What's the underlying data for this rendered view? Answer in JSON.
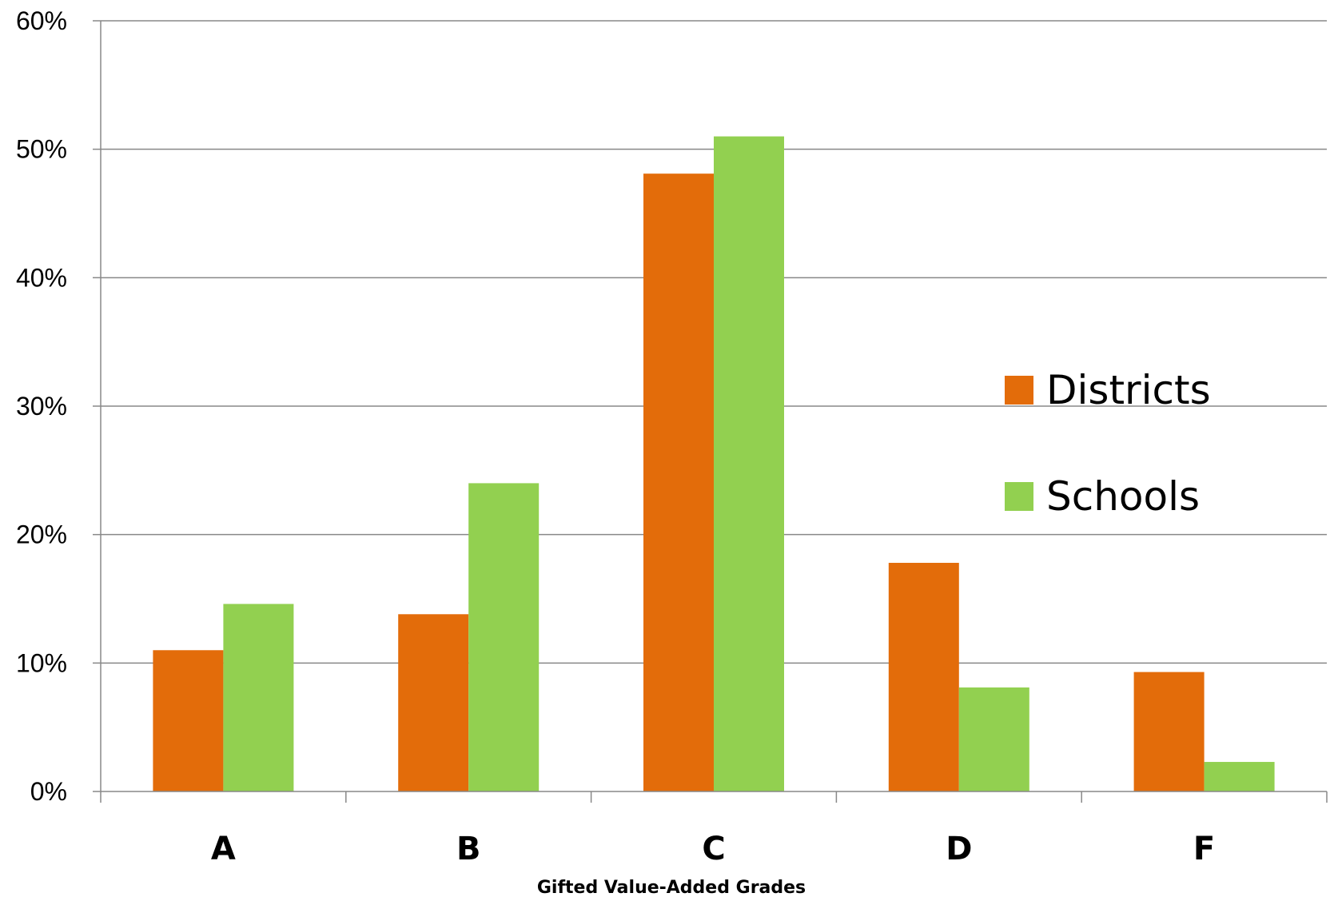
{
  "chart_data": {
    "type": "bar",
    "categories": [
      "A",
      "B",
      "C",
      "D",
      "F"
    ],
    "series": [
      {
        "name": "Districts",
        "color": "#e36c0a",
        "values": [
          11,
          13.8,
          48.1,
          17.8,
          9.3
        ]
      },
      {
        "name": "Schools",
        "color": "#92d050",
        "values": [
          14.6,
          24,
          51,
          8.1,
          2.3
        ]
      }
    ],
    "title": "",
    "xlabel": "Gifted Value-Added Grades",
    "ylabel": "",
    "ylim": [
      0,
      60
    ],
    "yticks": [
      0,
      10,
      20,
      30,
      40,
      50,
      60
    ],
    "ytick_labels": [
      "0%",
      "10%",
      "20%",
      "30%",
      "40%",
      "50%",
      "60%"
    ],
    "grid": true,
    "legend_position": "right",
    "grid_color": "#888888"
  }
}
